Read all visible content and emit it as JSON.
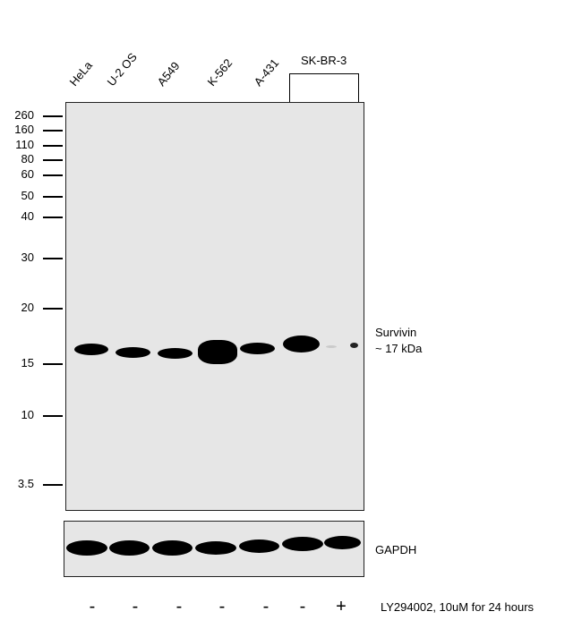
{
  "lanes": [
    "HeLa",
    "U-2 OS",
    "A549",
    "K-562",
    "A-431"
  ],
  "group_label": "SK-BR-3",
  "markers": [
    "260",
    "160",
    "110",
    "80",
    "60",
    "50",
    "40",
    "30",
    "20",
    "15",
    "10",
    "3.5"
  ],
  "target": {
    "name": "Survivin",
    "size": "~ 17 kDa"
  },
  "loading_control": "GAPDH",
  "treatment": {
    "signs": [
      "-",
      "-",
      "-",
      "-",
      "-",
      "-",
      "+"
    ],
    "label": "LY294002, 10uM for 24 hours"
  }
}
